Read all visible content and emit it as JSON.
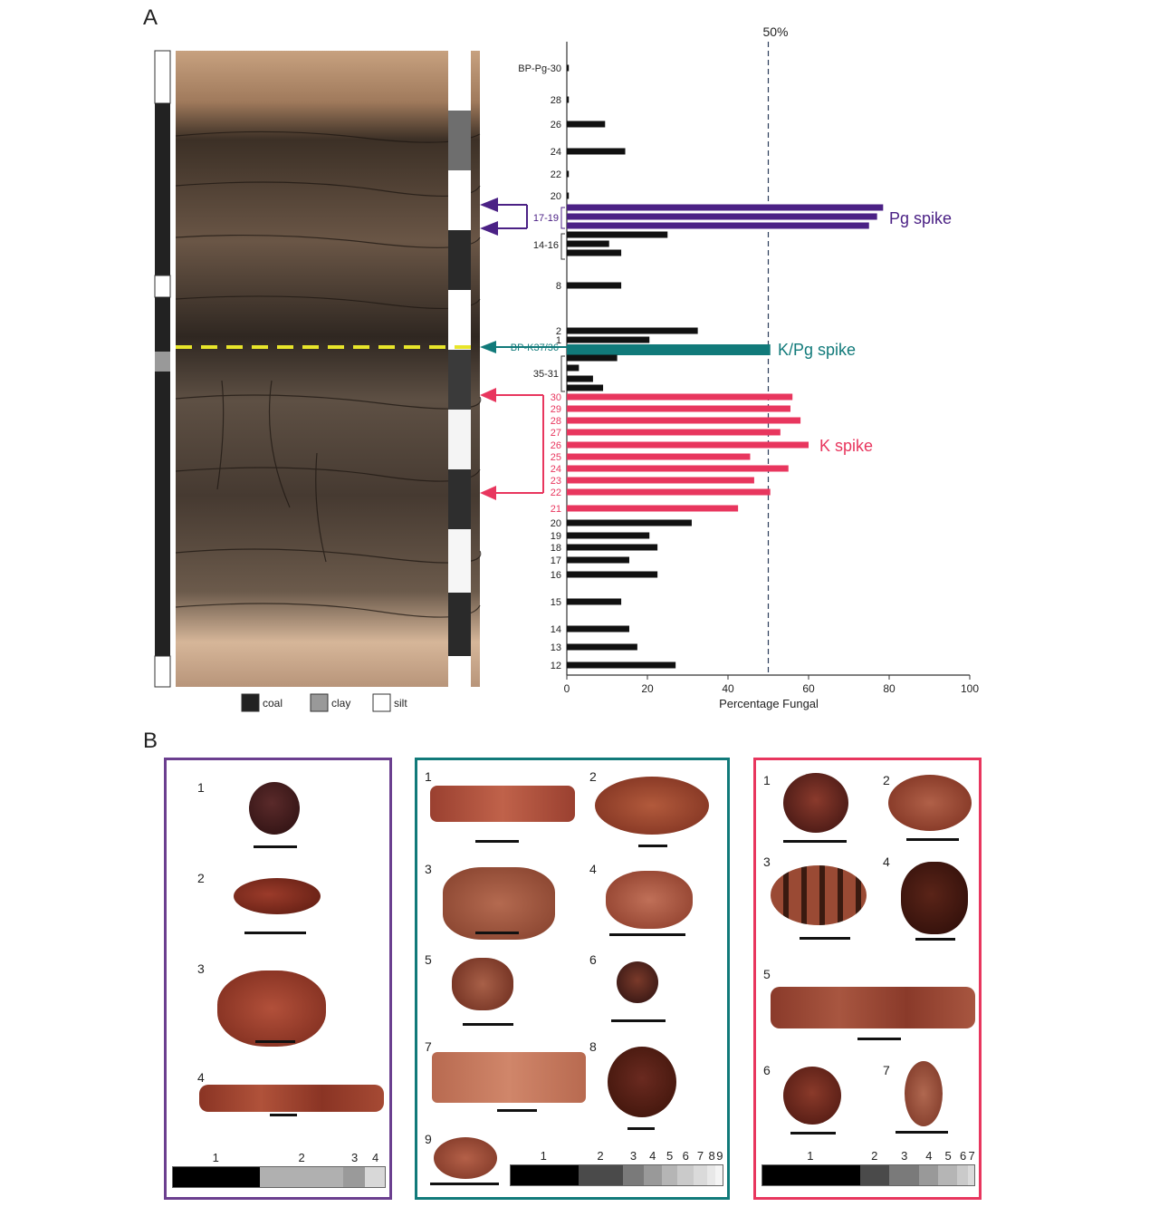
{
  "panels": {
    "a": "A",
    "b": "B"
  },
  "legend": [
    {
      "label": "coal",
      "color": "#222222"
    },
    {
      "label": "clay",
      "color": "#999999"
    },
    {
      "label": "silt",
      "color": "#ffffff"
    }
  ],
  "colors": {
    "pg": "#4b2185",
    "kpg": "#117a7a",
    "k": "#e8365e",
    "bars": "#111111"
  },
  "chart_data": {
    "type": "bar",
    "orientation": "horizontal",
    "xlabel": "Percentage Fungal",
    "xlim": [
      0,
      100
    ],
    "xticks": [
      0,
      20,
      40,
      60,
      80,
      100
    ],
    "threshold": {
      "value": 50,
      "label": "50%"
    },
    "bars": [
      {
        "label": "BP-Pg-30",
        "value": 0.5,
        "group": "plain"
      },
      {
        "label": "28",
        "value": 0.5,
        "group": "plain"
      },
      {
        "label": "26",
        "value": 9.5,
        "group": "plain"
      },
      {
        "label": "24",
        "value": 14.5,
        "group": "plain"
      },
      {
        "label": "22",
        "value": 0.5,
        "group": "plain"
      },
      {
        "label": "20",
        "value": 0.5,
        "group": "plain"
      },
      {
        "label": "",
        "value": 78.5,
        "group": "pg"
      },
      {
        "label": "",
        "value": 77,
        "group": "pg"
      },
      {
        "label": "",
        "value": 75,
        "group": "pg"
      },
      {
        "label": "",
        "value": 25,
        "group": "plain"
      },
      {
        "label": "",
        "value": 10.5,
        "group": "plain"
      },
      {
        "label": "",
        "value": 13.5,
        "group": "plain"
      },
      {
        "label": "8",
        "value": 13.5,
        "group": "plain"
      },
      {
        "label": "2",
        "value": 32.5,
        "group": "plain"
      },
      {
        "label": "1",
        "value": 20.5,
        "group": "plain"
      },
      {
        "label": "",
        "value": 50.5,
        "group": "kpg"
      },
      {
        "label": "",
        "value": 12.5,
        "group": "plain"
      },
      {
        "label": "",
        "value": 3,
        "group": "plain"
      },
      {
        "label": "",
        "value": 6.5,
        "group": "plain"
      },
      {
        "label": "",
        "value": 9,
        "group": "plain"
      },
      {
        "label": "30",
        "value": 56,
        "group": "k"
      },
      {
        "label": "29",
        "value": 55.5,
        "group": "k"
      },
      {
        "label": "28",
        "value": 58,
        "group": "k"
      },
      {
        "label": "27",
        "value": 53,
        "group": "k"
      },
      {
        "label": "26",
        "value": 60,
        "group": "k"
      },
      {
        "label": "25",
        "value": 45.5,
        "group": "k"
      },
      {
        "label": "24",
        "value": 55,
        "group": "k"
      },
      {
        "label": "23",
        "value": 46.5,
        "group": "k"
      },
      {
        "label": "22",
        "value": 50.5,
        "group": "k"
      },
      {
        "label": "21",
        "value": 42.5,
        "group": "k"
      },
      {
        "label": "20",
        "value": 31,
        "group": "plain"
      },
      {
        "label": "19",
        "value": 20.5,
        "group": "plain"
      },
      {
        "label": "18",
        "value": 22.5,
        "group": "plain"
      },
      {
        "label": "17",
        "value": 15.5,
        "group": "plain"
      },
      {
        "label": "16",
        "value": 22.5,
        "group": "plain"
      },
      {
        "label": "15",
        "value": 13.5,
        "group": "plain"
      },
      {
        "label": "14",
        "value": 15.5,
        "group": "plain"
      },
      {
        "label": "13",
        "value": 17.5,
        "group": "plain"
      },
      {
        "label": "12",
        "value": 27,
        "group": "plain"
      }
    ],
    "range_labels": [
      {
        "label": "17-19",
        "group": "pg"
      },
      {
        "label": "14-16",
        "group": "plain"
      },
      {
        "label": "BP-K37/36",
        "group": "kpg"
      },
      {
        "label": "35-31",
        "group": "plain"
      }
    ],
    "annotations": [
      {
        "text": "Pg spike",
        "group": "pg"
      },
      {
        "text": "K/Pg spike",
        "group": "kpg"
      },
      {
        "text": "K spike",
        "group": "k"
      }
    ]
  },
  "plates": {
    "pg": {
      "numbers": [
        "1",
        "2",
        "3",
        "4"
      ],
      "abundance": {
        "labels": [
          "1",
          "2",
          "3",
          "4"
        ],
        "shares": [
          40,
          38,
          10,
          9
        ]
      }
    },
    "kpg": {
      "numbers": [
        "1",
        "2",
        "3",
        "4",
        "5",
        "6",
        "7",
        "8",
        "9"
      ],
      "abundance": {
        "labels": [
          "1",
          "2",
          "3",
          "4",
          "5",
          "6",
          "7",
          "8",
          "9"
        ],
        "shares": [
          30,
          20,
          9,
          8,
          7,
          7,
          6,
          4,
          3
        ]
      }
    },
    "k": {
      "numbers": [
        "1",
        "2",
        "3",
        "4",
        "5",
        "6",
        "7"
      ],
      "abundance": {
        "labels": [
          "1",
          "2",
          "3",
          "4",
          "5",
          "6",
          "7"
        ],
        "shares": [
          46,
          14,
          14,
          9,
          9,
          5,
          3
        ]
      }
    }
  }
}
